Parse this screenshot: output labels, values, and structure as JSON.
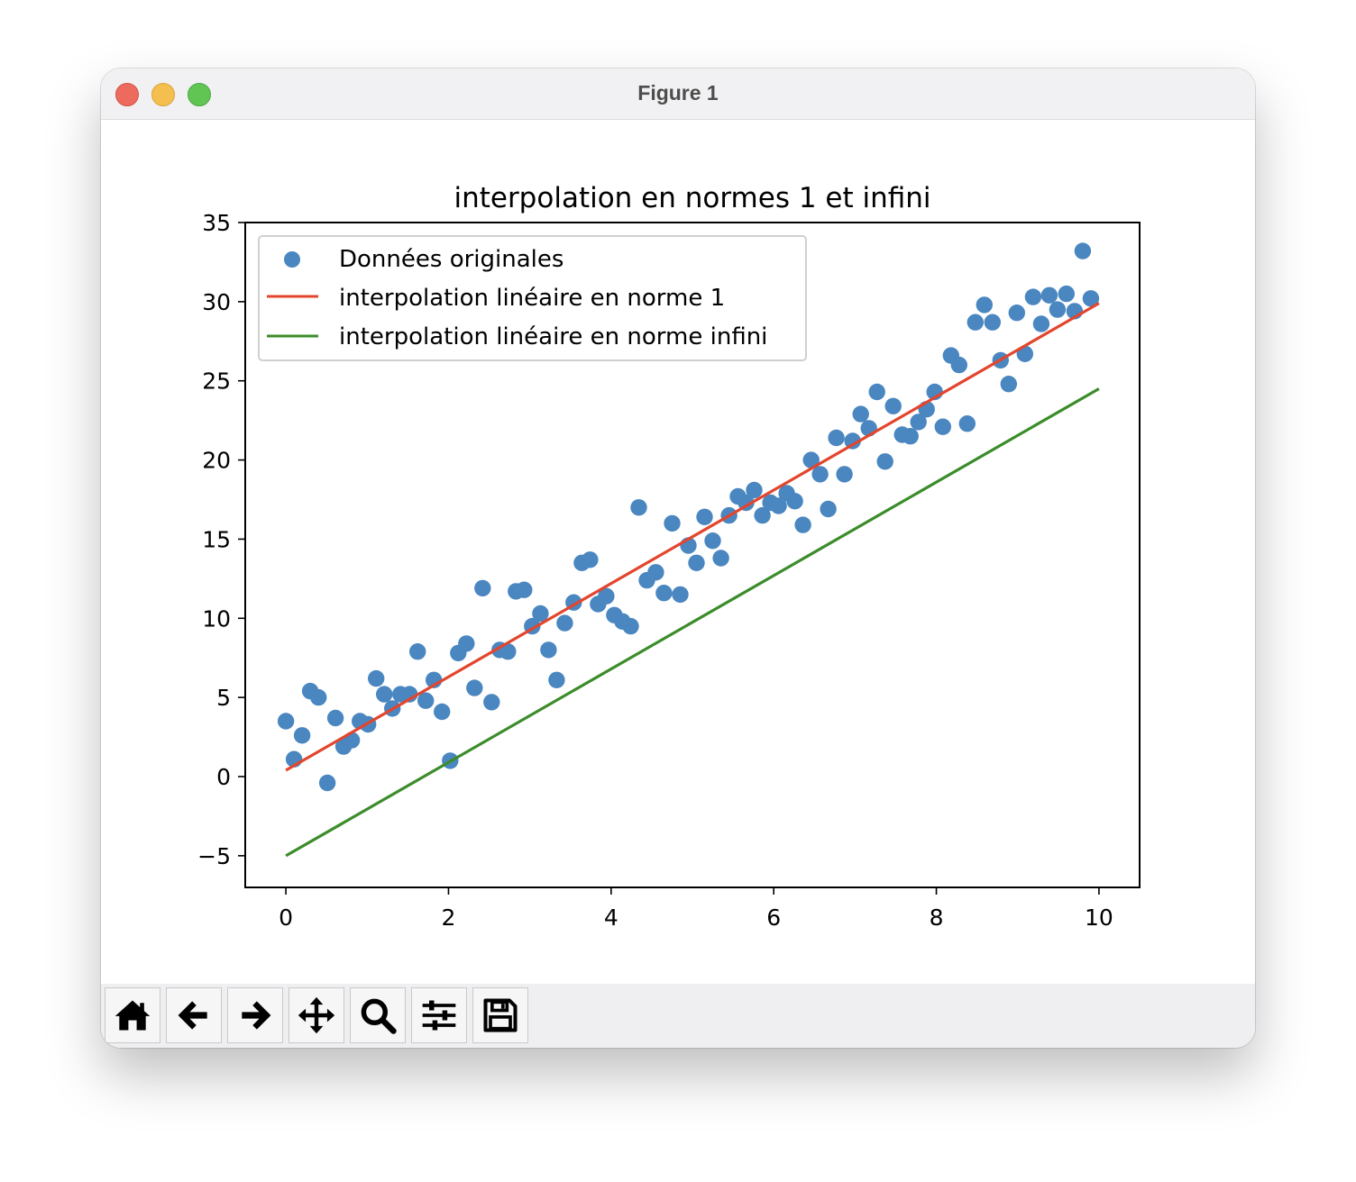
{
  "window": {
    "title": "Figure 1"
  },
  "toolbar": {
    "buttons": [
      {
        "icon": "home-icon",
        "name": "home-button"
      },
      {
        "icon": "arrow-left-icon",
        "name": "back-button"
      },
      {
        "icon": "arrow-right-icon",
        "name": "forward-button"
      },
      {
        "icon": "move-icon",
        "name": "pan-button"
      },
      {
        "icon": "zoom-icon",
        "name": "zoom-button"
      },
      {
        "icon": "sliders-icon",
        "name": "configure-subplots-button"
      },
      {
        "icon": "save-icon",
        "name": "save-button"
      }
    ]
  },
  "chart_data": {
    "type": "scatter",
    "title": "interpolation en normes 1 et infini",
    "xlabel": "",
    "ylabel": "",
    "xlim": [
      -0.5,
      10.5
    ],
    "ylim": [
      -7,
      35
    ],
    "xticks": [
      0,
      2,
      4,
      6,
      8,
      10
    ],
    "yticks": [
      -5,
      0,
      5,
      10,
      15,
      20,
      25,
      30,
      35
    ],
    "grid": false,
    "legend_position": "top-left",
    "colors": {
      "scatter": "#4a86c0",
      "norm1": "#e3452d",
      "norminf": "#3b8c2a"
    },
    "legend": [
      "Données originales",
      "interpolation linéaire en norme 1",
      "interpolation linéaire en norme infini"
    ],
    "scatter": {
      "name": "Données originales",
      "points": [
        [
          0.0,
          3.5
        ],
        [
          0.1,
          1.1
        ],
        [
          0.2,
          2.6
        ],
        [
          0.3,
          5.4
        ],
        [
          0.4,
          5.0
        ],
        [
          0.51,
          -0.4
        ],
        [
          0.61,
          3.7
        ],
        [
          0.71,
          1.9
        ],
        [
          0.81,
          2.3
        ],
        [
          0.91,
          3.5
        ],
        [
          1.01,
          3.3
        ],
        [
          1.11,
          6.2
        ],
        [
          1.21,
          5.2
        ],
        [
          1.31,
          4.3
        ],
        [
          1.41,
          5.2
        ],
        [
          1.52,
          5.2
        ],
        [
          1.62,
          7.9
        ],
        [
          1.72,
          4.8
        ],
        [
          1.82,
          6.1
        ],
        [
          1.92,
          4.1
        ],
        [
          2.02,
          1.0
        ],
        [
          2.12,
          7.8
        ],
        [
          2.22,
          8.4
        ],
        [
          2.32,
          5.6
        ],
        [
          2.42,
          11.9
        ],
        [
          2.53,
          4.7
        ],
        [
          2.63,
          8.0
        ],
        [
          2.73,
          7.9
        ],
        [
          2.83,
          11.7
        ],
        [
          2.93,
          11.8
        ],
        [
          3.03,
          9.5
        ],
        [
          3.13,
          10.3
        ],
        [
          3.23,
          8.0
        ],
        [
          3.33,
          6.1
        ],
        [
          3.43,
          9.7
        ],
        [
          3.54,
          11.0
        ],
        [
          3.64,
          13.5
        ],
        [
          3.74,
          13.7
        ],
        [
          3.84,
          10.9
        ],
        [
          3.94,
          11.4
        ],
        [
          4.04,
          10.2
        ],
        [
          4.14,
          9.8
        ],
        [
          4.24,
          9.5
        ],
        [
          4.34,
          17.0
        ],
        [
          4.44,
          12.4
        ],
        [
          4.55,
          12.9
        ],
        [
          4.65,
          11.6
        ],
        [
          4.75,
          16.0
        ],
        [
          4.85,
          11.5
        ],
        [
          4.95,
          14.6
        ],
        [
          5.05,
          13.5
        ],
        [
          5.15,
          16.4
        ],
        [
          5.25,
          14.9
        ],
        [
          5.35,
          13.8
        ],
        [
          5.45,
          16.5
        ],
        [
          5.56,
          17.7
        ],
        [
          5.66,
          17.3
        ],
        [
          5.76,
          18.1
        ],
        [
          5.86,
          16.5
        ],
        [
          5.96,
          17.3
        ],
        [
          6.06,
          17.1
        ],
        [
          6.16,
          17.9
        ],
        [
          6.26,
          17.4
        ],
        [
          6.36,
          15.9
        ],
        [
          6.46,
          20.0
        ],
        [
          6.57,
          19.1
        ],
        [
          6.67,
          16.9
        ],
        [
          6.77,
          21.4
        ],
        [
          6.87,
          19.1
        ],
        [
          6.97,
          21.2
        ],
        [
          7.07,
          22.9
        ],
        [
          7.17,
          22.0
        ],
        [
          7.27,
          24.3
        ],
        [
          7.37,
          19.9
        ],
        [
          7.47,
          23.4
        ],
        [
          7.58,
          21.6
        ],
        [
          7.68,
          21.5
        ],
        [
          7.78,
          22.4
        ],
        [
          7.88,
          23.2
        ],
        [
          7.98,
          24.3
        ],
        [
          8.08,
          22.1
        ],
        [
          8.18,
          26.6
        ],
        [
          8.28,
          26.0
        ],
        [
          8.38,
          22.3
        ],
        [
          8.48,
          28.7
        ],
        [
          8.59,
          29.8
        ],
        [
          8.69,
          28.7
        ],
        [
          8.79,
          26.3
        ],
        [
          8.89,
          24.8
        ],
        [
          8.99,
          29.3
        ],
        [
          9.09,
          26.7
        ],
        [
          9.19,
          30.3
        ],
        [
          9.29,
          28.6
        ],
        [
          9.39,
          30.4
        ],
        [
          9.49,
          29.5
        ],
        [
          9.6,
          30.5
        ],
        [
          9.7,
          29.4
        ],
        [
          9.8,
          33.2
        ],
        [
          9.9,
          30.2
        ]
      ]
    },
    "series": [
      {
        "name": "interpolation linéaire en norme 1",
        "x": [
          0,
          10
        ],
        "y": [
          0.4,
          29.9
        ]
      },
      {
        "name": "interpolation linéaire en norme infini",
        "x": [
          0,
          10
        ],
        "y": [
          -5.0,
          24.5
        ]
      }
    ]
  }
}
